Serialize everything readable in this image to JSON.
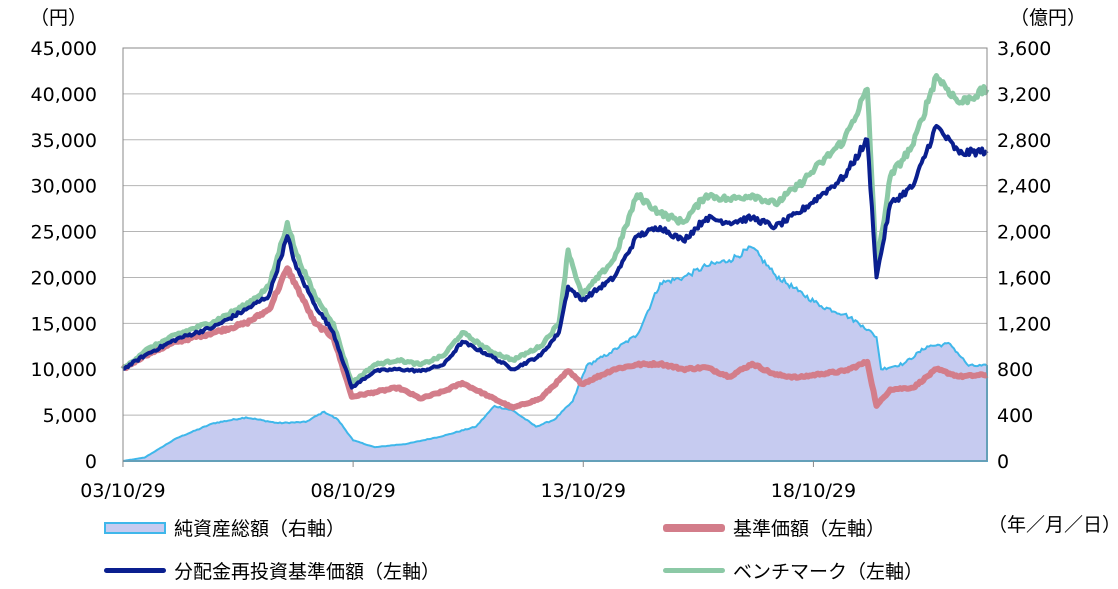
{
  "chart_data": {
    "type": "area+line",
    "left_axis_unit": "（円）",
    "right_axis_unit": "（億円）",
    "date_format_note": "（年／月／日）",
    "x_ticks": [
      "03/10/29",
      "08/10/29",
      "13/10/29",
      "18/10/29"
    ],
    "left_ticks": [
      "0",
      "5,000",
      "10,000",
      "15,000",
      "20,000",
      "25,000",
      "30,000",
      "35,000",
      "40,000",
      "45,000"
    ],
    "right_ticks": [
      "0",
      "400",
      "800",
      "1,200",
      "1,600",
      "2,000",
      "2,400",
      "2,800",
      "3,200",
      "3,600"
    ],
    "ylim_left": [
      0,
      45000
    ],
    "ylim_right": [
      0,
      3600
    ],
    "xlim": [
      2003.83,
      2022.6
    ],
    "series": [
      {
        "name": "純資産総額（右軸）",
        "axis": "right",
        "style": "area",
        "color": "#3fb7ea",
        "fill": "#c6cbf0",
        "points": [
          [
            2003.83,
            0
          ],
          [
            2004.3,
            30
          ],
          [
            2005.0,
            200
          ],
          [
            2005.8,
            330
          ],
          [
            2006.5,
            380
          ],
          [
            2007.2,
            330
          ],
          [
            2007.8,
            340
          ],
          [
            2008.2,
            430
          ],
          [
            2008.5,
            360
          ],
          [
            2008.83,
            180
          ],
          [
            2009.3,
            120
          ],
          [
            2010.0,
            150
          ],
          [
            2010.8,
            220
          ],
          [
            2011.5,
            300
          ],
          [
            2011.9,
            480
          ],
          [
            2012.3,
            440
          ],
          [
            2012.8,
            300
          ],
          [
            2013.2,
            360
          ],
          [
            2013.6,
            520
          ],
          [
            2013.9,
            830
          ],
          [
            2014.4,
            940
          ],
          [
            2015.0,
            1100
          ],
          [
            2015.5,
            1550
          ],
          [
            2016.0,
            1600
          ],
          [
            2016.5,
            1700
          ],
          [
            2017.0,
            1750
          ],
          [
            2017.5,
            1860
          ],
          [
            2018.0,
            1620
          ],
          [
            2018.5,
            1480
          ],
          [
            2019.0,
            1350
          ],
          [
            2019.5,
            1280
          ],
          [
            2019.9,
            1180
          ],
          [
            2020.2,
            1080
          ],
          [
            2020.3,
            800
          ],
          [
            2020.8,
            850
          ],
          [
            2021.3,
            1000
          ],
          [
            2021.8,
            1020
          ],
          [
            2022.2,
            830
          ],
          [
            2022.6,
            830
          ],
          [
            2022.6,
            0
          ]
        ]
      },
      {
        "name": "基準価額（左軸）",
        "axis": "left",
        "style": "line",
        "color": "#d37d8a",
        "points": [
          [
            2003.83,
            10000
          ],
          [
            2004.3,
            11500
          ],
          [
            2005.0,
            13000
          ],
          [
            2005.8,
            14000
          ],
          [
            2006.5,
            15000
          ],
          [
            2007.0,
            16500
          ],
          [
            2007.4,
            21000
          ],
          [
            2007.6,
            19000
          ],
          [
            2008.0,
            15000
          ],
          [
            2008.4,
            13500
          ],
          [
            2008.8,
            7000
          ],
          [
            2009.3,
            7500
          ],
          [
            2009.8,
            8000
          ],
          [
            2010.3,
            6800
          ],
          [
            2010.8,
            7600
          ],
          [
            2011.2,
            8500
          ],
          [
            2011.8,
            7000
          ],
          [
            2012.3,
            5800
          ],
          [
            2012.9,
            6800
          ],
          [
            2013.3,
            8800
          ],
          [
            2013.5,
            9800
          ],
          [
            2013.8,
            8400
          ],
          [
            2014.5,
            10000
          ],
          [
            2015.0,
            10500
          ],
          [
            2015.5,
            10600
          ],
          [
            2016.0,
            10000
          ],
          [
            2016.5,
            10200
          ],
          [
            2017.0,
            9200
          ],
          [
            2017.5,
            10600
          ],
          [
            2018.0,
            9400
          ],
          [
            2018.5,
            9100
          ],
          [
            2019.0,
            9500
          ],
          [
            2019.5,
            9800
          ],
          [
            2020.0,
            10800
          ],
          [
            2020.2,
            6000
          ],
          [
            2020.5,
            7800
          ],
          [
            2021.0,
            8000
          ],
          [
            2021.5,
            10000
          ],
          [
            2022.0,
            9200
          ],
          [
            2022.6,
            9400
          ]
        ]
      },
      {
        "name": "分配金再投資基準価額（左軸）",
        "axis": "left",
        "style": "line",
        "color": "#0a1f8f",
        "points": [
          [
            2003.83,
            10000
          ],
          [
            2004.3,
            11500
          ],
          [
            2005.0,
            13300
          ],
          [
            2005.8,
            14600
          ],
          [
            2006.5,
            16500
          ],
          [
            2007.0,
            18000
          ],
          [
            2007.4,
            24500
          ],
          [
            2007.6,
            21000
          ],
          [
            2008.0,
            17000
          ],
          [
            2008.4,
            14000
          ],
          [
            2008.8,
            8000
          ],
          [
            2009.3,
            9800
          ],
          [
            2009.8,
            10000
          ],
          [
            2010.3,
            9800
          ],
          [
            2010.8,
            10500
          ],
          [
            2011.2,
            13000
          ],
          [
            2011.8,
            11500
          ],
          [
            2012.3,
            10000
          ],
          [
            2012.9,
            11500
          ],
          [
            2013.3,
            14000
          ],
          [
            2013.5,
            19000
          ],
          [
            2013.8,
            17500
          ],
          [
            2014.5,
            20000
          ],
          [
            2015.0,
            24500
          ],
          [
            2015.5,
            25500
          ],
          [
            2016.0,
            24000
          ],
          [
            2016.5,
            26500
          ],
          [
            2017.0,
            26000
          ],
          [
            2017.5,
            26500
          ],
          [
            2018.0,
            25500
          ],
          [
            2018.5,
            27000
          ],
          [
            2019.0,
            29000
          ],
          [
            2019.5,
            31000
          ],
          [
            2020.0,
            35000
          ],
          [
            2020.2,
            20000
          ],
          [
            2020.5,
            28000
          ],
          [
            2021.0,
            30000
          ],
          [
            2021.5,
            36500
          ],
          [
            2022.0,
            33500
          ],
          [
            2022.6,
            33800
          ]
        ]
      },
      {
        "name": "ベンチマーク（左軸）",
        "axis": "left",
        "style": "line",
        "color": "#8cc9a6",
        "points": [
          [
            2003.83,
            10000
          ],
          [
            2004.3,
            12000
          ],
          [
            2005.0,
            13800
          ],
          [
            2005.8,
            15200
          ],
          [
            2006.5,
            17000
          ],
          [
            2007.0,
            19000
          ],
          [
            2007.4,
            26000
          ],
          [
            2007.6,
            22500
          ],
          [
            2008.0,
            18000
          ],
          [
            2008.4,
            15000
          ],
          [
            2008.8,
            8500
          ],
          [
            2009.3,
            10500
          ],
          [
            2009.8,
            11000
          ],
          [
            2010.3,
            10500
          ],
          [
            2010.8,
            11500
          ],
          [
            2011.2,
            14000
          ],
          [
            2011.8,
            12000
          ],
          [
            2012.3,
            11000
          ],
          [
            2012.9,
            12500
          ],
          [
            2013.3,
            15000
          ],
          [
            2013.5,
            23000
          ],
          [
            2013.8,
            18000
          ],
          [
            2014.5,
            22000
          ],
          [
            2015.0,
            29000
          ],
          [
            2015.5,
            27000
          ],
          [
            2016.0,
            26000
          ],
          [
            2016.5,
            29000
          ],
          [
            2017.0,
            28500
          ],
          [
            2017.5,
            29000
          ],
          [
            2018.0,
            28000
          ],
          [
            2018.5,
            30000
          ],
          [
            2019.0,
            32500
          ],
          [
            2019.5,
            35000
          ],
          [
            2020.0,
            40500
          ],
          [
            2020.2,
            21000
          ],
          [
            2020.5,
            31000
          ],
          [
            2021.0,
            34500
          ],
          [
            2021.5,
            42000
          ],
          [
            2022.0,
            39000
          ],
          [
            2022.6,
            40500
          ]
        ]
      }
    ]
  }
}
